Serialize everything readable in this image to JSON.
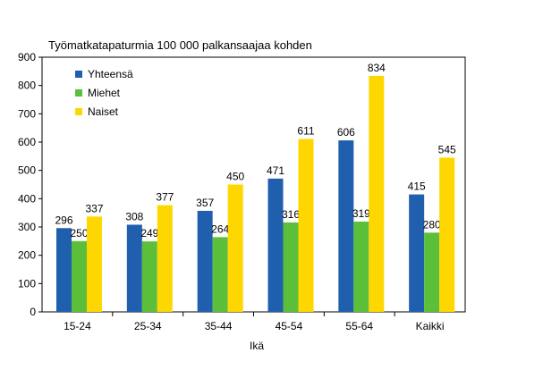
{
  "chart_data": {
    "type": "bar",
    "title": "Työmatkatapaturmia 100 000 palkansaajaa kohden",
    "xlabel": "Ikä",
    "ylabel": "",
    "ylim": [
      0,
      900
    ],
    "yticks": [
      0,
      100,
      200,
      300,
      400,
      500,
      600,
      700,
      800,
      900
    ],
    "categories": [
      "15-24",
      "25-34",
      "35-44",
      "45-54",
      "55-64",
      "Kaikki"
    ],
    "series": [
      {
        "name": "Yhteensä",
        "color": "#1f5fae",
        "values": [
          296,
          308,
          357,
          471,
          606,
          415
        ]
      },
      {
        "name": "Miehet",
        "color": "#5cbf3a",
        "values": [
          250,
          249,
          264,
          316,
          319,
          280
        ]
      },
      {
        "name": "Naiset",
        "color": "#ffd700",
        "values": [
          337,
          377,
          450,
          611,
          834,
          545
        ]
      }
    ],
    "grid": false,
    "legend_position": "top-left"
  }
}
